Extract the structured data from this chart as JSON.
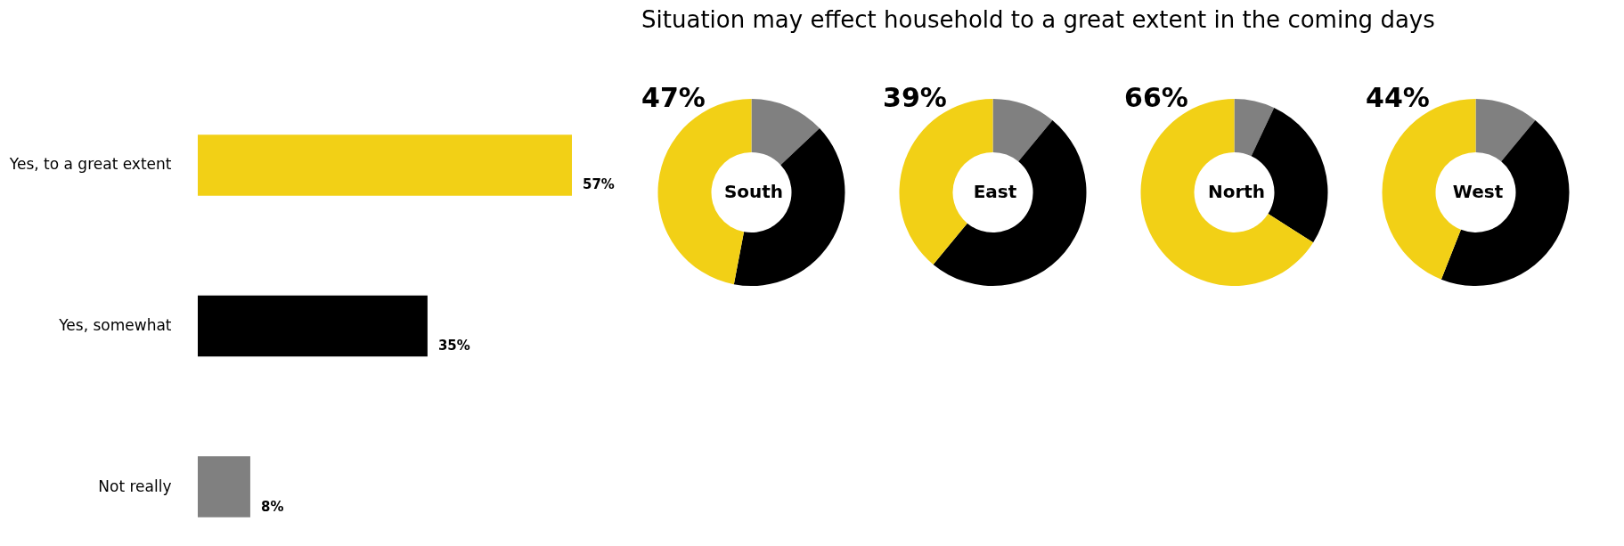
{
  "chart_data": [
    {
      "type": "bar",
      "orientation": "horizontal",
      "categories": [
        "Yes, to a great extent",
        "Yes, somewhat",
        "Not really"
      ],
      "values": [
        57,
        35,
        8
      ],
      "colors": [
        "#f2d016",
        "#000000",
        "#808080"
      ],
      "value_labels": [
        "57%",
        "35%",
        "8%"
      ]
    },
    {
      "type": "donut",
      "title": "Situation may effect household to a great extent in the coming days",
      "categories": [
        null,
        null,
        null
      ],
      "values": [
        13,
        40,
        47
      ],
      "colors": [
        "#808080",
        "#000000",
        "#f2d016"
      ],
      "value_labels": [
        null,
        null,
        "47%"
      ],
      "annotations": [
        "South"
      ]
    },
    {
      "type": "donut",
      "categories": [
        null,
        null,
        null
      ],
      "values": [
        11,
        50,
        39
      ],
      "colors": [
        "#808080",
        "#000000",
        "#f2d016"
      ],
      "value_labels": [
        null,
        null,
        "39%"
      ],
      "annotations": [
        "East"
      ]
    },
    {
      "type": "donut",
      "categories": [
        null,
        null,
        null
      ],
      "values": [
        7,
        27,
        66
      ],
      "colors": [
        "#808080",
        "#000000",
        "#f2d016"
      ],
      "value_labels": [
        null,
        null,
        "66%"
      ],
      "annotations": [
        "North"
      ]
    },
    {
      "type": "donut",
      "categories": [
        null,
        null,
        null
      ],
      "values": [
        11,
        45,
        44
      ],
      "colors": [
        "#808080",
        "#000000",
        "#f2d016"
      ],
      "value_labels": [
        null,
        null,
        "44%"
      ],
      "annotations": [
        "West"
      ]
    }
  ]
}
